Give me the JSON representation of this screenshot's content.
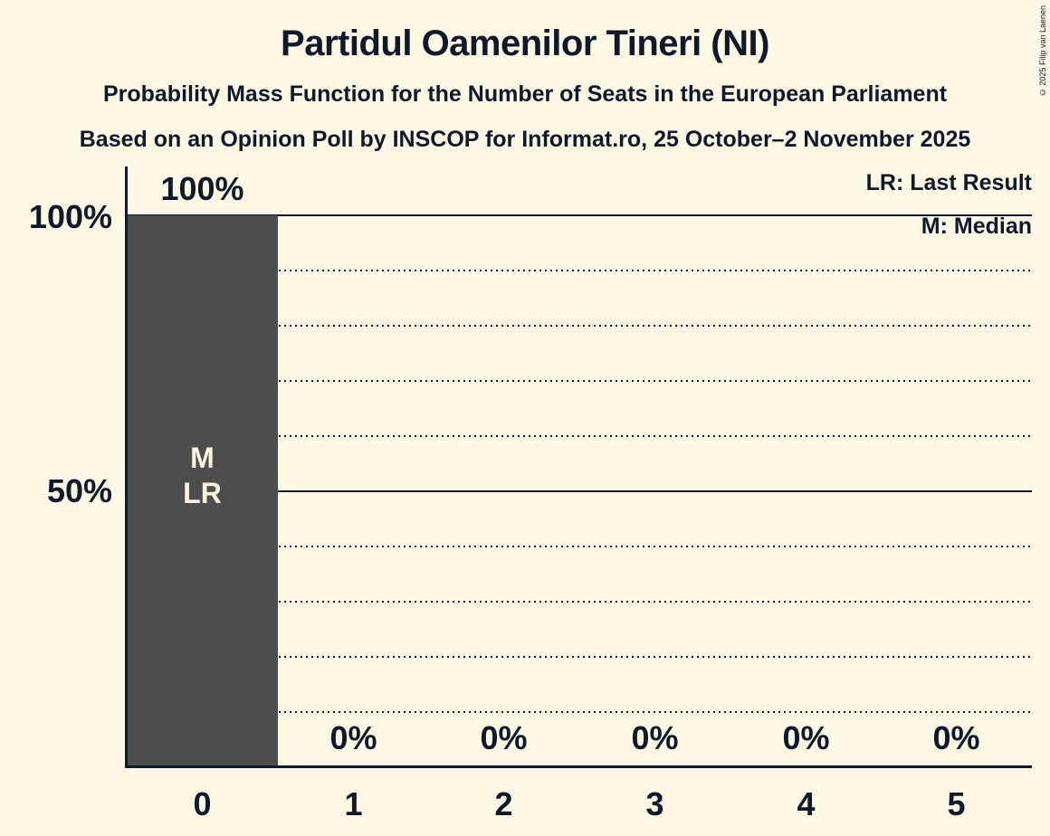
{
  "header": {
    "title": "Partidul Oamenilor Tineri (NI)",
    "subtitle1": "Probability Mass Function for the Number of Seats in the European Parliament",
    "subtitle2": "Based on an Opinion Poll by INSCOP for Informat.ro, 25 October–2 November 2025",
    "copyright": "© 2025 Filip van Laenen"
  },
  "legend": {
    "last_result": "LR: Last Result",
    "median": "M: Median"
  },
  "y_axis": {
    "label_100": "100%",
    "label_50": "50%"
  },
  "bar_annotation": {
    "median": "M",
    "last_result": "LR"
  },
  "colors": {
    "background": "#fcf8e3",
    "bar": "#4d4d4d",
    "text": "#0e1a2b",
    "bar_label": "#faf4de"
  },
  "chart_data": {
    "type": "bar",
    "title": "Partidul Oamenilor Tineri (NI)",
    "categories": [
      "0",
      "1",
      "2",
      "3",
      "4",
      "5"
    ],
    "values": [
      100,
      0,
      0,
      0,
      0,
      0
    ],
    "value_labels": [
      "100%",
      "0%",
      "0%",
      "0%",
      "0%",
      "0%"
    ],
    "xlabel": "",
    "ylabel": "",
    "ylim": [
      0,
      100
    ],
    "y_solid_gridlines": [
      100,
      50
    ],
    "y_dotted_gridlines": [
      90,
      80,
      70,
      60,
      40,
      30,
      20,
      10
    ],
    "median_seats": "0",
    "last_result_seats": "0",
    "legend_position": "top-right",
    "annotations_on_bar": [
      "M",
      "LR"
    ]
  }
}
